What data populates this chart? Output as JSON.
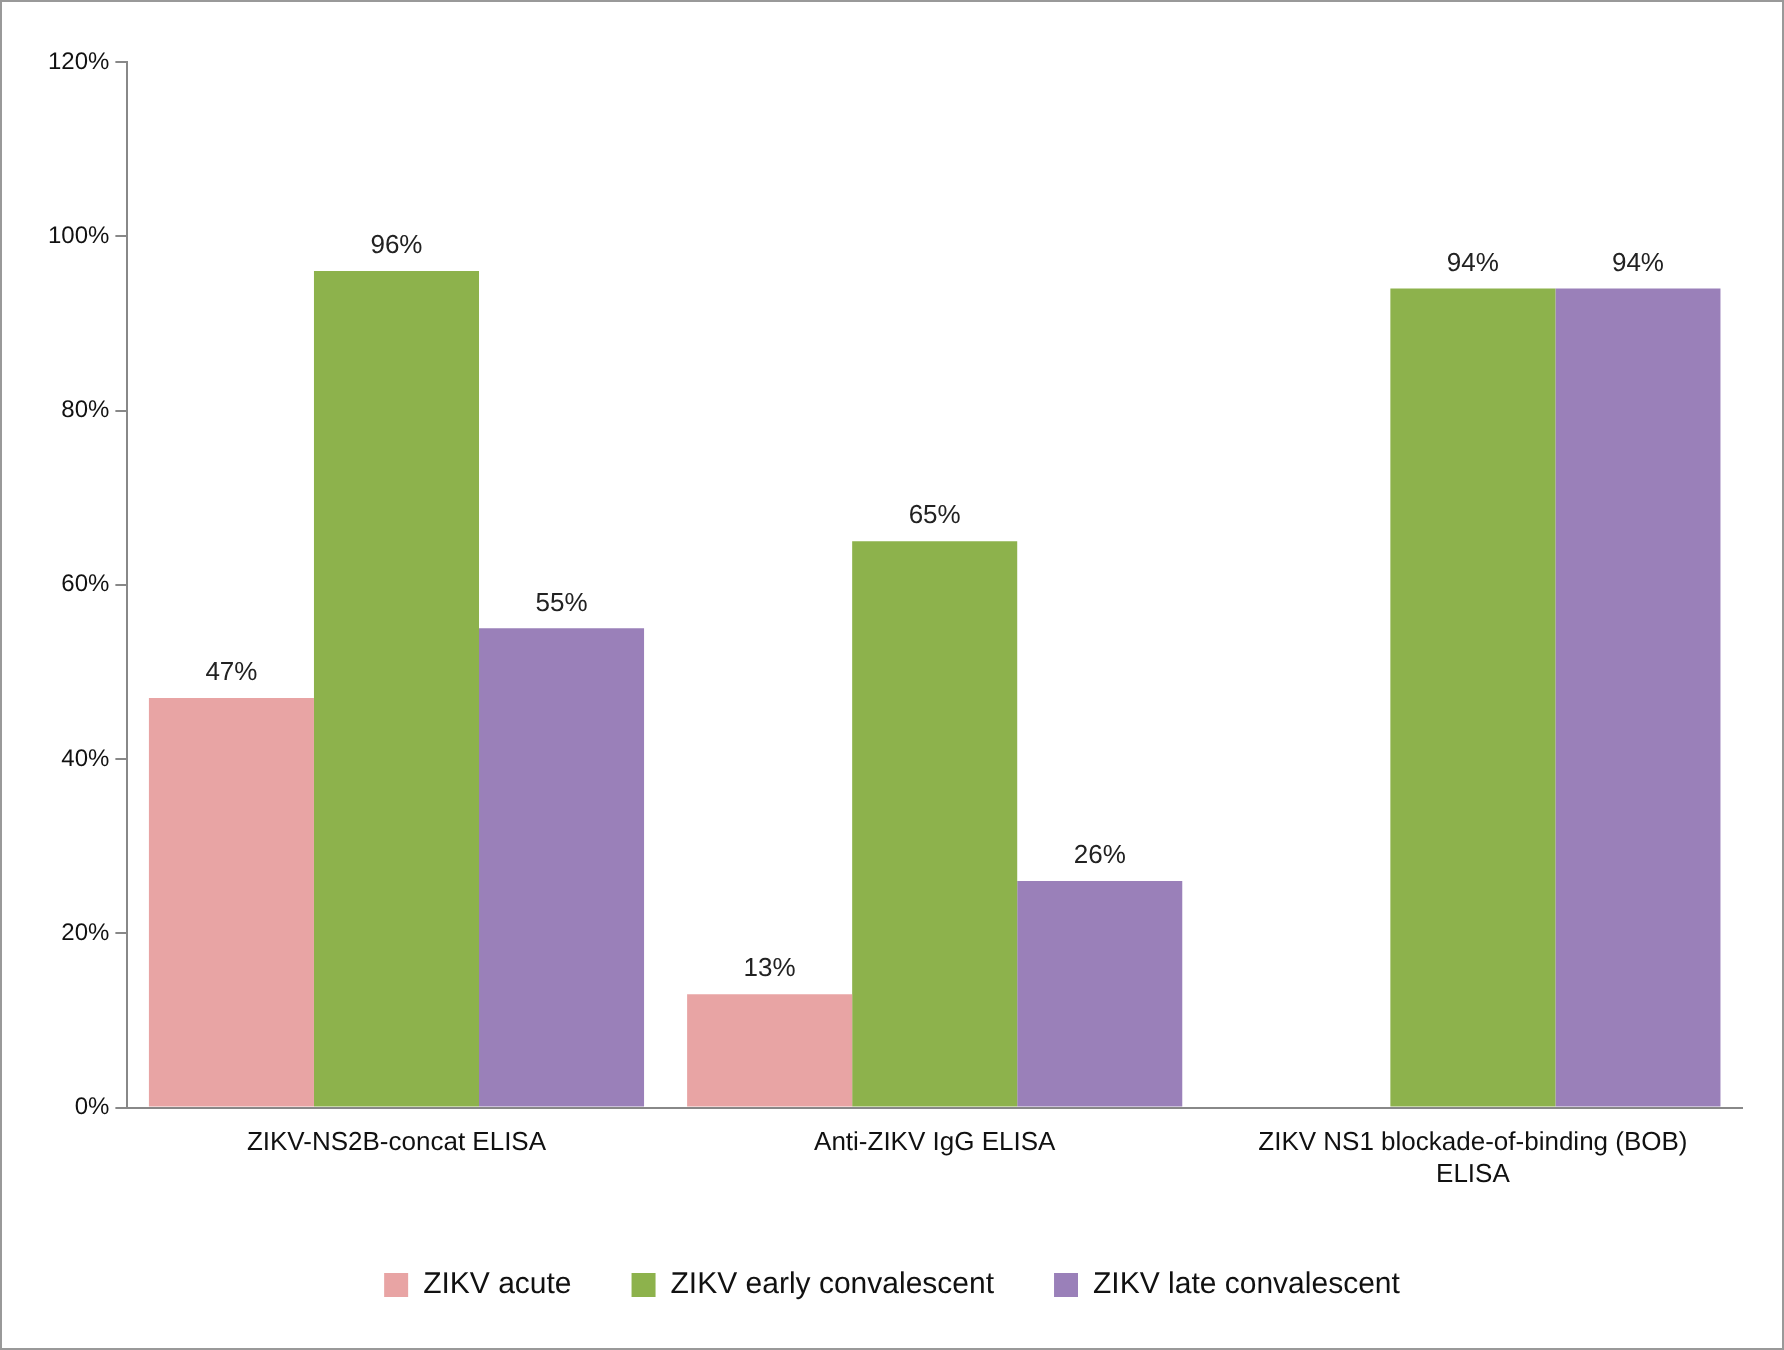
{
  "chart_data": {
    "type": "bar",
    "categories": [
      "ZIKV-NS2B-concat ELISA",
      "Anti-ZIKV IgG ELISA",
      "ZIKV NS1 blockade-of-binding (BOB) ELISA"
    ],
    "series": [
      {
        "name": "ZIKV acute",
        "color": "#e8a4a4",
        "values": [
          47,
          13,
          null
        ],
        "value_labels": [
          "47%",
          "13%",
          null
        ]
      },
      {
        "name": "ZIKV early convalescent",
        "color": "#8db24c",
        "values": [
          96,
          65,
          94
        ],
        "value_labels": [
          "96%",
          "65%",
          "94%"
        ]
      },
      {
        "name": "ZIKV late convalescent",
        "color": "#9a80b9",
        "values": [
          55,
          26,
          94
        ],
        "value_labels": [
          "55%",
          "26%",
          "94%"
        ]
      }
    ],
    "ylim": [
      0,
      120
    ],
    "yticks": [
      {
        "value": 0,
        "label": "0%"
      },
      {
        "value": 20,
        "label": "20%"
      },
      {
        "value": 40,
        "label": "40%"
      },
      {
        "value": 60,
        "label": "60%"
      },
      {
        "value": 80,
        "label": "80%"
      },
      {
        "value": 100,
        "label": "100%"
      },
      {
        "value": 120,
        "label": "120%"
      }
    ],
    "grid": false,
    "legend": "bottom"
  }
}
